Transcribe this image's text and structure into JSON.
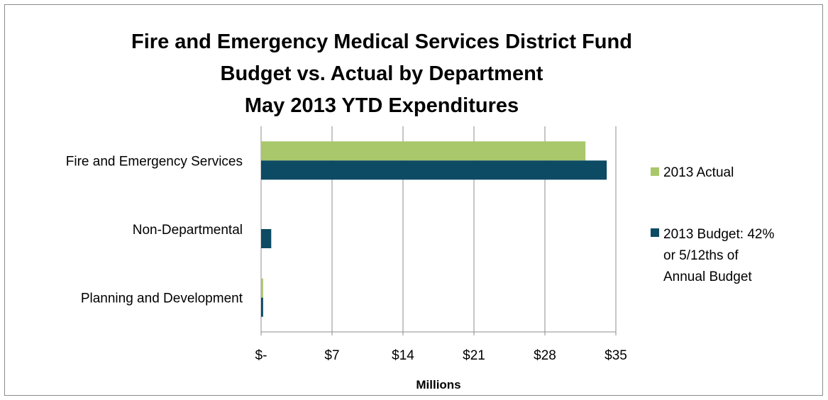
{
  "chart_data": {
    "type": "bar",
    "orientation": "horizontal",
    "title_lines": [
      "Fire and Emergency Medical Services District Fund",
      "Budget vs. Actual by Department",
      "May 2013 YTD Expenditures"
    ],
    "categories": [
      "Fire and Emergency Services",
      "Non-Departmental",
      "Planning and Development"
    ],
    "series": [
      {
        "name": "2013 Actual",
        "color": "#a9c76b",
        "values": [
          32.0,
          0.0,
          0.2
        ]
      },
      {
        "name_lines": [
          "2013 Budget: 42%",
          "or 5/12ths of",
          "Annual Budget"
        ],
        "color": "#0d4a63",
        "values": [
          34.1,
          1.0,
          0.2
        ]
      }
    ],
    "xlabel": "Millions",
    "ylabel": "",
    "xlim": [
      0,
      35
    ],
    "x_ticks": [
      0,
      7,
      14,
      21,
      28,
      35
    ],
    "x_tick_labels": [
      "$-",
      "$7",
      "$14",
      "$21",
      "$28",
      "$35"
    ],
    "grid": "vertical",
    "legend_position": "right"
  }
}
